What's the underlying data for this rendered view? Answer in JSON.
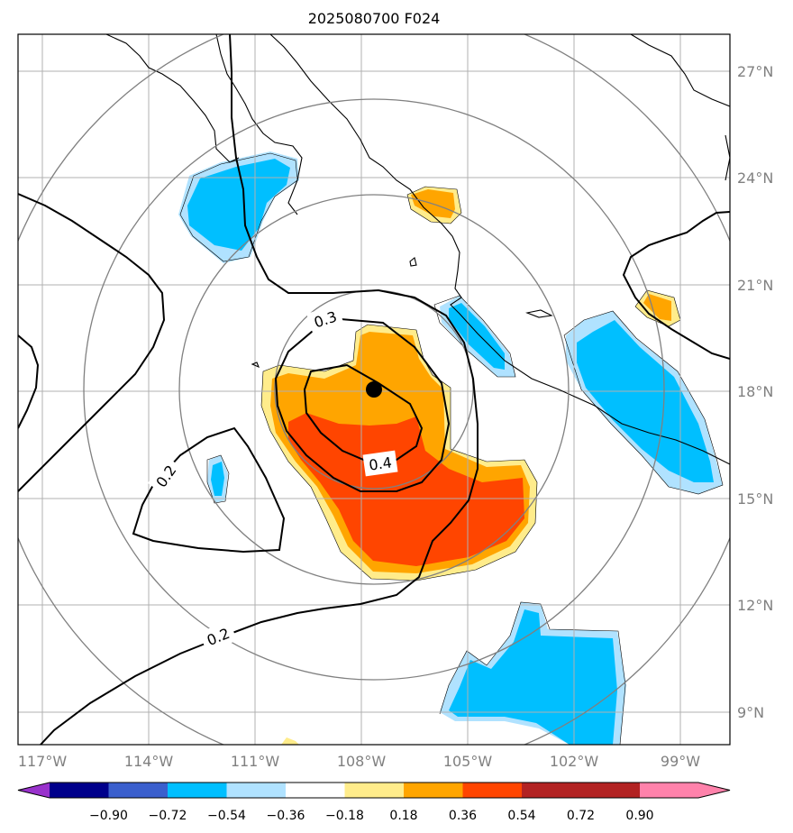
{
  "title": "2025080700 F024",
  "map": {
    "lon_ticks": [
      "117°W",
      "114°W",
      "111°W",
      "108°W",
      "105°W",
      "102°W",
      "99°W"
    ],
    "lat_ticks": [
      "27°N",
      "24°N",
      "21°N",
      "18°N",
      "15°N",
      "12°N",
      "9°N"
    ],
    "storm_center": {
      "lat": 18.0,
      "lon": -107.6
    },
    "contour_labels": [
      "0.3",
      "0.4",
      "0.2",
      "0.2"
    ]
  },
  "colorbar": {
    "labels": [
      "−0.90",
      "−0.72",
      "−0.54",
      "−0.36",
      "−0.18",
      "0.18",
      "0.36",
      "0.54",
      "0.72",
      "0.90"
    ],
    "colors": [
      "#9932cc",
      "#00008b",
      "#3a5fcd",
      "#00bfff",
      "#b0e2ff",
      "#ffffff",
      "#ffec8b",
      "#ffa500",
      "#ff4500",
      "#b22222",
      "#ff82ab"
    ]
  },
  "fill_colors": {
    "neg_light": "#b0e2ff",
    "neg": "#00bfff",
    "pos_light": "#ffec8b",
    "pos": "#ffa500",
    "pos_strong": "#ff4500"
  }
}
